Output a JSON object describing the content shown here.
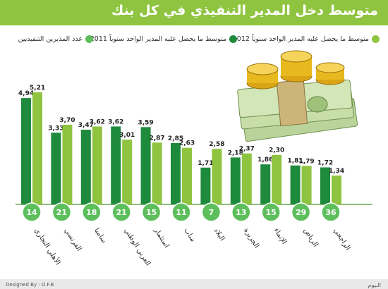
{
  "title": "متوسط دخل المدير التنفيذي في كل بنك",
  "legend": [
    {
      "label": "متوسط ما يحصل عليه المدير الواحد سنوياً 2012",
      "color": "#8fc440"
    },
    {
      "label": "متوسط ما يحصل عليه المدير الواحد سنوياً 2011",
      "color": "#1e8a3c"
    },
    {
      "label": "عدد المديرين التنفيذيين",
      "color": "#5cbf5c"
    }
  ],
  "colors": {
    "dark": "#1e8a3c",
    "light": "#8fc440",
    "circle": "#5cbf5c",
    "accent": "#8fc440"
  },
  "chart_data": {
    "type": "bar",
    "categories": [
      "الأهلي التجاري",
      "الفرنسي",
      "سامبا",
      "العربي الوطني",
      "استثمار",
      "ساب",
      "البلاد",
      "الجزيرة",
      "الإنماء",
      "الرياض",
      "الراجحي"
    ],
    "series": [
      {
        "name": "متوسط ما يحصل عليه المدير الواحد سنوياً 2011",
        "values": [
          4.94,
          3.33,
          3.47,
          3.62,
          3.59,
          2.85,
          1.71,
          2.18,
          1.86,
          1.81,
          1.72
        ],
        "labels": [
          "4,94",
          "3,33",
          "3,47",
          "3,62",
          "3,59",
          "2,85",
          "1,71",
          "2,18",
          "1,86",
          "1,81",
          "1,72"
        ]
      },
      {
        "name": "متوسط ما يحصل عليه المدير الواحد سنوياً 2012",
        "values": [
          5.21,
          3.7,
          3.62,
          3.01,
          2.87,
          2.63,
          2.58,
          2.37,
          2.3,
          1.79,
          1.34
        ],
        "labels": [
          "5,21",
          "3,70",
          "3,62",
          "3,01",
          "2,87",
          "2,63",
          "2,58",
          "2,37",
          "2,30",
          "1,79",
          "1,34"
        ]
      }
    ],
    "executive_counts": [
      14,
      21,
      18,
      21,
      15,
      11,
      7,
      13,
      15,
      29,
      36
    ],
    "ylim": [
      0,
      5.5
    ],
    "grid": false,
    "legend_position": "top"
  },
  "footer": {
    "credit": "Designed By : O.F.B",
    "source": "الـيوم"
  }
}
